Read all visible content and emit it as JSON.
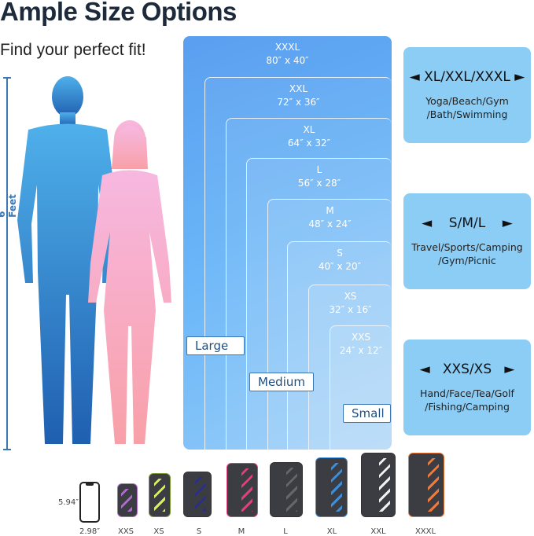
{
  "header": {
    "title": "Ample Size Options",
    "subtitle": "Find your perfect fit!"
  },
  "height_marker": "6 Feet",
  "sizes": [
    {
      "name": "XXXL",
      "dims": "80″ x 40″"
    },
    {
      "name": "XXL",
      "dims": "72″ x 36″"
    },
    {
      "name": "XL",
      "dims": "64″ x 32″"
    },
    {
      "name": "L",
      "dims": "56″ x 28″"
    },
    {
      "name": "M",
      "dims": "48″ x 24″"
    },
    {
      "name": "S",
      "dims": "40″ x 20″"
    },
    {
      "name": "XS",
      "dims": "32″ x 16″"
    },
    {
      "name": "XXS",
      "dims": "24″ x 12″"
    }
  ],
  "groups": {
    "large": "Large",
    "medium": "Medium",
    "small": "Small"
  },
  "cards": [
    {
      "heading": "XL/XXL/XXXL",
      "line1": "Yoga/Beach/Gym",
      "line2": "/Bath/Swimming"
    },
    {
      "heading": "S/M/L",
      "line1": "Travel/Sports/Camping",
      "line2": "/Gym/Picnic"
    },
    {
      "heading": "XXS/XS",
      "line1": "Hand/Face/Tea/Golf",
      "line2": "/Fishing/Camping"
    }
  ],
  "phone": {
    "height": "5.94″",
    "width": "2.98″"
  },
  "pouches": [
    {
      "label": "XXS",
      "color": "#b06ad0"
    },
    {
      "label": "XS",
      "color": "#d8f060"
    },
    {
      "label": "S",
      "color": "#2a2f8a"
    },
    {
      "label": "M",
      "color": "#e0407a"
    },
    {
      "label": "L",
      "color": "#555555"
    },
    {
      "label": "XL",
      "color": "#3a90e0"
    },
    {
      "label": "XXL",
      "color": "#f0f0f0"
    },
    {
      "label": "XXXL",
      "color": "#f07a3a"
    }
  ]
}
